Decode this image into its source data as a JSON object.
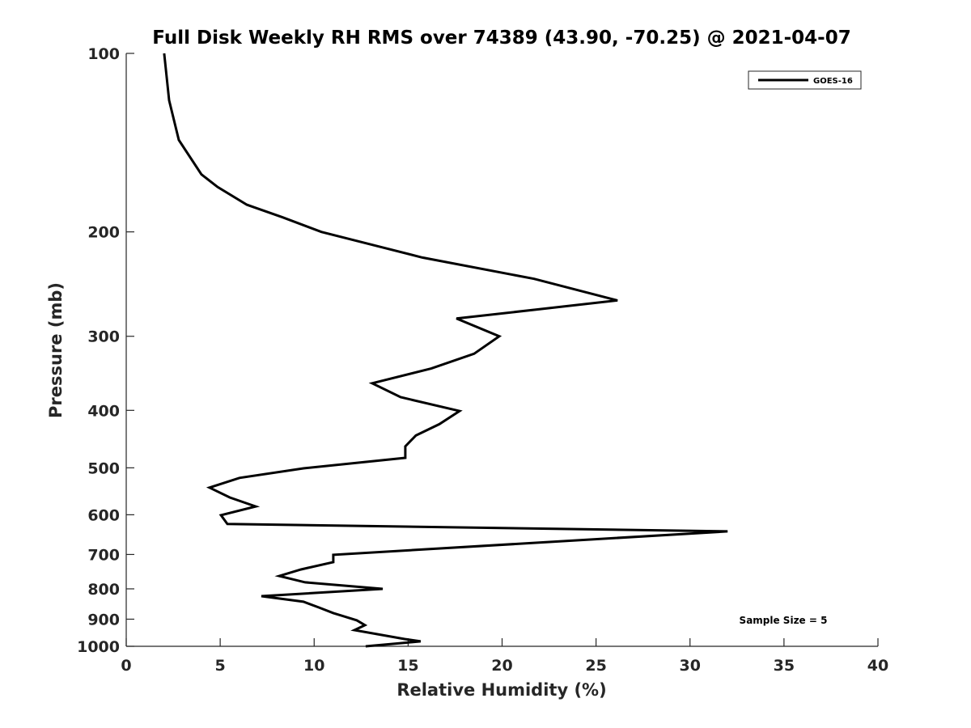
{
  "chart_data": {
    "type": "line",
    "title": "Full Disk Weekly RH RMS over 74389 (43.90, -70.25) @ 2021-04-07",
    "xlabel": "Relative Humidity (%)",
    "ylabel": "Pressure (mb)",
    "xlim": [
      0,
      40
    ],
    "ylim": [
      100,
      1000
    ],
    "yscale": "log",
    "yreversed": true,
    "grid": false,
    "xticks": [
      "0",
      "5",
      "10",
      "15",
      "20",
      "25",
      "30",
      "35",
      "40"
    ],
    "yticks": [
      "100",
      "200",
      "300",
      "400",
      "500",
      "600",
      "700",
      "800",
      "900",
      "1000"
    ],
    "legend_position": "top-right",
    "annotation": "Sample Size = 5",
    "series": [
      {
        "name": "GOES-16",
        "color": "#000000",
        "points": [
          [
            2.02,
            100
          ],
          [
            2.28,
            120
          ],
          [
            2.8,
            140
          ],
          [
            4.0,
            160
          ],
          [
            4.86,
            168
          ],
          [
            6.42,
            180
          ],
          [
            8.31,
            189
          ],
          [
            10.38,
            200
          ],
          [
            13.52,
            212
          ],
          [
            15.76,
            221
          ],
          [
            21.7,
            240
          ],
          [
            26.14,
            261
          ],
          [
            17.57,
            280
          ],
          [
            19.85,
            300
          ],
          [
            18.51,
            321
          ],
          [
            16.23,
            340
          ],
          [
            13.09,
            360
          ],
          [
            14.6,
            380
          ],
          [
            17.74,
            401
          ],
          [
            16.66,
            422
          ],
          [
            15.41,
            441
          ],
          [
            14.85,
            460
          ],
          [
            14.85,
            481
          ],
          [
            9.43,
            501
          ],
          [
            6.03,
            520
          ],
          [
            4.43,
            540
          ],
          [
            5.51,
            561
          ],
          [
            6.89,
            581
          ],
          [
            5.04,
            601
          ],
          [
            5.38,
            622
          ],
          [
            32.0,
            640
          ],
          [
            11.02,
            701
          ],
          [
            11.02,
            721
          ],
          [
            9.3,
            742
          ],
          [
            8.14,
            761
          ],
          [
            9.52,
            780
          ],
          [
            13.65,
            800
          ],
          [
            7.19,
            823
          ],
          [
            9.43,
            841
          ],
          [
            10.25,
            860
          ],
          [
            11.02,
            879
          ],
          [
            12.27,
            904
          ],
          [
            12.7,
            921
          ],
          [
            12.14,
            939
          ],
          [
            14.81,
            972
          ],
          [
            15.67,
            981
          ],
          [
            12.74,
            1000
          ]
        ]
      }
    ]
  }
}
